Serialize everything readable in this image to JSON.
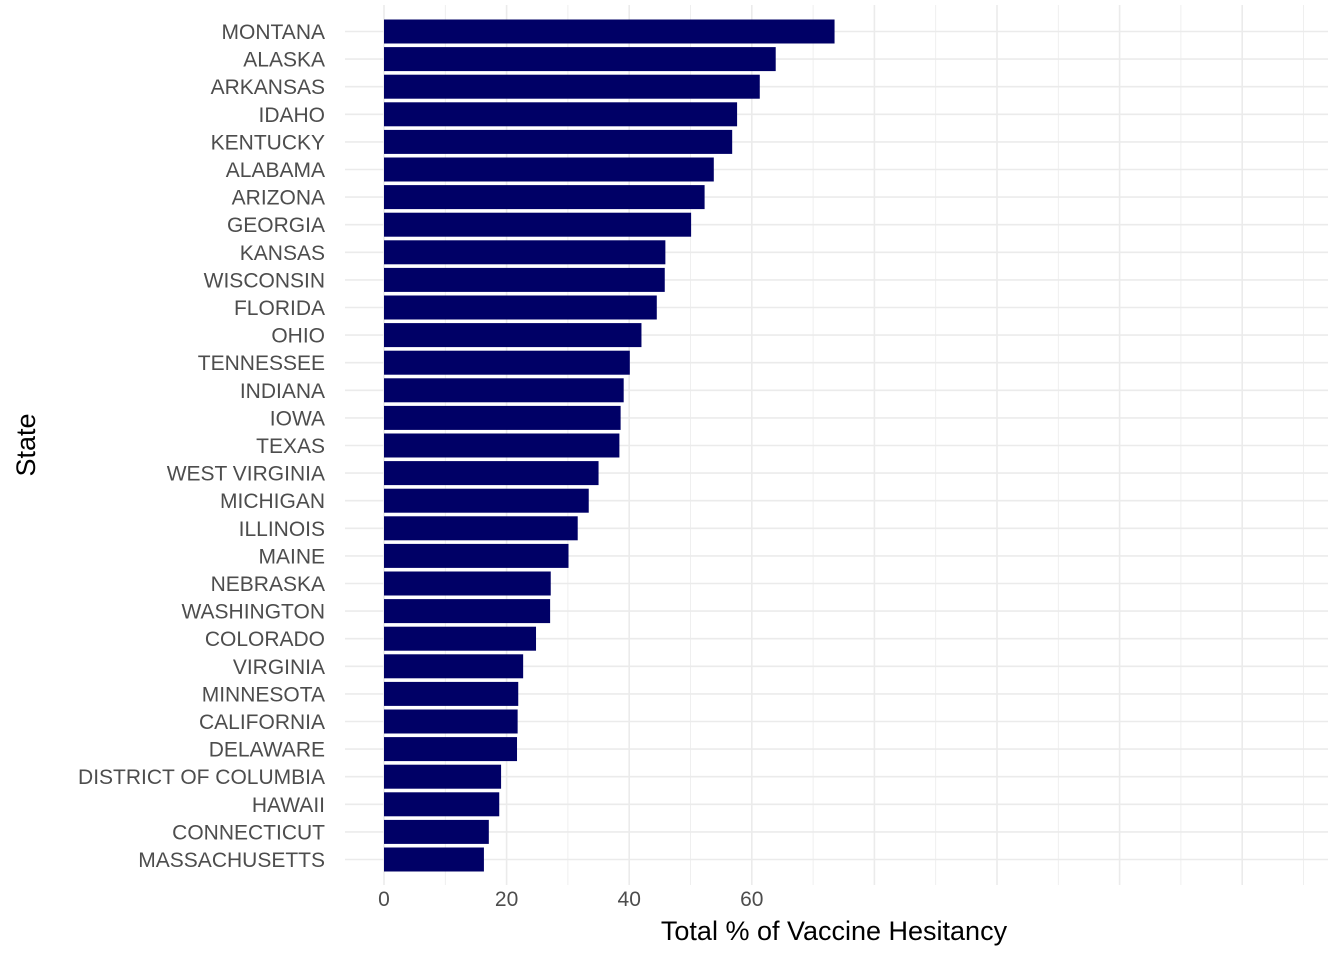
{
  "chart_data": {
    "type": "bar",
    "orientation": "horizontal",
    "categories": [
      "MONTANA",
      "ALASKA",
      "ARKANSAS",
      "IDAHO",
      "KENTUCKY",
      "ALABAMA",
      "ARIZONA",
      "GEORGIA",
      "KANSAS",
      "WISCONSIN",
      "FLORIDA",
      "OHIO",
      "TENNESSEE",
      "INDIANA",
      "IOWA",
      "TEXAS",
      "WEST VIRGINIA",
      "MICHIGAN",
      "ILLINOIS",
      "MAINE",
      "NEBRASKA",
      "WASHINGTON",
      "COLORADO",
      "VIRGINIA",
      "MINNESOTA",
      "CALIFORNIA",
      "DELAWARE",
      "DISTRICT OF COLUMBIA",
      "HAWAII",
      "CONNECTICUT",
      "MASSACHUSETTS"
    ],
    "values": [
      73.5,
      63.9,
      61.3,
      57.6,
      56.8,
      53.8,
      52.3,
      50.1,
      45.9,
      45.8,
      44.5,
      42.0,
      40.1,
      39.1,
      38.6,
      38.4,
      35.0,
      33.4,
      31.6,
      30.1,
      27.2,
      27.1,
      24.8,
      22.7,
      21.9,
      21.8,
      21.7,
      19.1,
      18.8,
      17.1,
      16.3
    ],
    "xlabel": "Total % of Vaccine Hesitancy",
    "ylabel": "State",
    "xlim": [
      0,
      77
    ],
    "xticks": [
      0,
      20,
      40,
      60
    ],
    "xtick_labels": [
      "0",
      "20",
      "40",
      "60"
    ],
    "grid": true,
    "colors": {
      "bar": "#000066",
      "grid": "#ebebeb",
      "tick_text": "#4d4d4d",
      "title_text": "#000000"
    }
  }
}
